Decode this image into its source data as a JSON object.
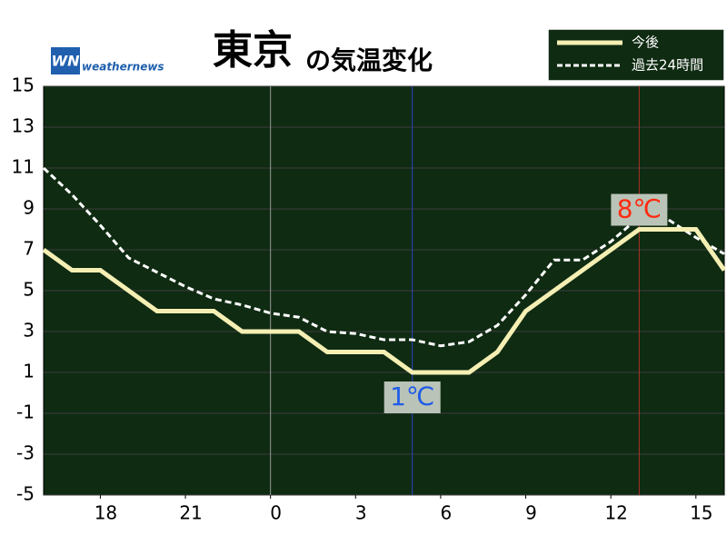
{
  "chart_data": {
    "type": "line",
    "title": "東京",
    "title_suffix": "の気温変化",
    "logo": {
      "mark": "WN",
      "text": "weathernews"
    },
    "x": [
      16,
      17,
      18,
      19,
      20,
      21,
      22,
      23,
      24,
      25,
      26,
      27,
      28,
      29,
      30,
      31,
      32,
      33,
      34,
      35,
      36,
      37,
      38,
      39,
      40
    ],
    "series": [
      {
        "name": "今後",
        "color": "#f5efb4",
        "line_style": "solid",
        "values": [
          7,
          6,
          6,
          5,
          4,
          4,
          4,
          3,
          3,
          3,
          2,
          2,
          2,
          1,
          1,
          1,
          2,
          4,
          5,
          6,
          7,
          8,
          8,
          8,
          6
        ]
      },
      {
        "name": "過去24時間",
        "color": "#ffffff",
        "line_style": "dashed",
        "values": [
          11,
          9.7,
          8.2,
          6.6,
          5.9,
          5.2,
          4.6,
          4.3,
          3.9,
          3.7,
          3.0,
          2.9,
          2.6,
          2.6,
          2.3,
          2.5,
          3.3,
          4.8,
          6.5,
          6.5,
          7.4,
          8.6,
          8.5,
          7.6,
          6.8
        ]
      }
    ],
    "xlim": [
      16,
      40
    ],
    "xticks": [
      18,
      21,
      {
        "value": 24,
        "label": "0"
      },
      {
        "value": 27,
        "label": "3"
      },
      {
        "value": 30,
        "label": "6"
      },
      {
        "value": 33,
        "label": "9"
      },
      {
        "value": 36,
        "label": "12"
      },
      {
        "value": 39,
        "label": "15"
      }
    ],
    "ylim": [
      -5,
      15
    ],
    "yticks": [
      -5,
      -3,
      -1,
      1,
      3,
      5,
      7,
      9,
      11,
      13,
      15
    ],
    "grid": true,
    "vlines": [
      {
        "x": 24,
        "color": "#9a9a9a"
      },
      {
        "x": 29,
        "color": "#2b45c8"
      },
      {
        "x": 37,
        "color": "#b0302a"
      }
    ],
    "annotations": [
      {
        "x": 29,
        "y": 1,
        "label": "1℃",
        "color": "#1f5ce8",
        "position": "below"
      },
      {
        "x": 37,
        "y": 8,
        "label": "8℃",
        "color": "#ff2a10",
        "position": "above"
      }
    ],
    "legend": "top-right"
  }
}
